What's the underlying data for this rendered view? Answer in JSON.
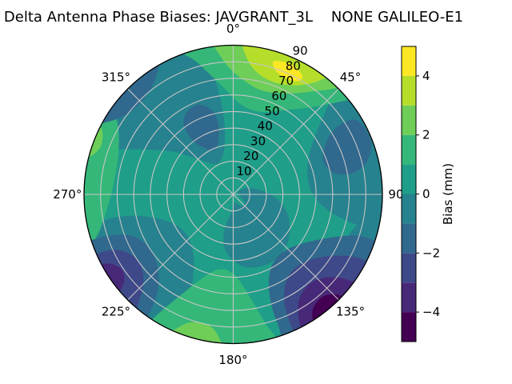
{
  "chart_data": {
    "type": "polar_contour",
    "title": "Delta Antenna Phase Biases: JAVGRANT_3L    NONE GALILEO-E1",
    "units": "mm",
    "value_range": [
      -5,
      5
    ],
    "grid_on": true,
    "base_value": 0.5,
    "base_color": "#1f9e89",
    "angular_ticks": [
      {
        "deg": 0,
        "label": "0°"
      },
      {
        "deg": 45,
        "label": "45°"
      },
      {
        "deg": 90,
        "label": "90°"
      },
      {
        "deg": 135,
        "label": "135°"
      },
      {
        "deg": 180,
        "label": "180°"
      },
      {
        "deg": 225,
        "label": "225°"
      },
      {
        "deg": 270,
        "label": "270°"
      },
      {
        "deg": 315,
        "label": "315°"
      }
    ],
    "radial_axis": {
      "max": 90,
      "grid_step": 10,
      "label_angle_deg": 25,
      "label_radial_pad": 5.5
    },
    "radial_ticks": [
      {
        "r": 10,
        "label": "10"
      },
      {
        "r": 20,
        "label": "20"
      },
      {
        "r": 30,
        "label": "30"
      },
      {
        "r": 40,
        "label": "40"
      },
      {
        "r": 50,
        "label": "50"
      },
      {
        "r": 60,
        "label": "60"
      },
      {
        "r": 70,
        "label": "70"
      },
      {
        "r": 80,
        "label": "80"
      },
      {
        "r": 90,
        "label": "90"
      }
    ],
    "colorbar": {
      "label": "Bias (mm)",
      "vmin": -5,
      "vmax": 5,
      "ticks": [
        {
          "v": 4,
          "label": "4"
        },
        {
          "v": 2,
          "label": "2"
        },
        {
          "v": 0,
          "label": "0"
        },
        {
          "v": -2,
          "label": "−2"
        },
        {
          "v": -4,
          "label": "−4"
        }
      ],
      "levels": [
        {
          "from": -5,
          "to": -4,
          "color": "#440154"
        },
        {
          "from": -4,
          "to": -3,
          "color": "#482878"
        },
        {
          "from": -3,
          "to": -2,
          "color": "#3e4989"
        },
        {
          "from": -2,
          "to": -1,
          "color": "#31688e"
        },
        {
          "from": -1,
          "to": 0,
          "color": "#26828e"
        },
        {
          "from": 0,
          "to": 1,
          "color": "#1f9e89"
        },
        {
          "from": 1,
          "to": 2,
          "color": "#35b779"
        },
        {
          "from": 2,
          "to": 3,
          "color": "#6ece58"
        },
        {
          "from": 3,
          "to": 4,
          "color": "#b5de2b"
        },
        {
          "from": 4,
          "to": 5,
          "color": "#fde725"
        }
      ]
    },
    "regions": [
      {
        "value": -0.5,
        "color": "#26828e",
        "name": "upper-left-low",
        "points": [
          [
            283,
            95
          ],
          [
            290,
            78
          ],
          [
            296,
            62
          ],
          [
            305,
            45
          ],
          [
            315,
            30
          ],
          [
            327,
            22
          ],
          [
            340,
            22
          ],
          [
            350,
            30
          ],
          [
            353,
            45
          ],
          [
            352,
            62
          ],
          [
            350,
            80
          ],
          [
            349,
            95
          ],
          [
            330,
            98
          ],
          [
            310,
            98
          ],
          [
            292,
            98
          ]
        ]
      },
      {
        "value": -0.5,
        "color": "#26828e",
        "name": "right-low",
        "points": [
          [
            44,
            92
          ],
          [
            48,
            75
          ],
          [
            55,
            60
          ],
          [
            65,
            50
          ],
          [
            78,
            46
          ],
          [
            90,
            48
          ],
          [
            99,
            57
          ],
          [
            103,
            70
          ],
          [
            104,
            84
          ],
          [
            103,
            95
          ],
          [
            85,
            98
          ],
          [
            65,
            98
          ],
          [
            50,
            96
          ]
        ]
      },
      {
        "value": -0.5,
        "color": "#26828e",
        "name": "center-low",
        "points": [
          [
            62,
            8
          ],
          [
            80,
            16
          ],
          [
            95,
            26
          ],
          [
            112,
            36
          ],
          [
            132,
            44
          ],
          [
            152,
            47
          ],
          [
            172,
            44
          ],
          [
            188,
            34
          ],
          [
            194,
            22
          ],
          [
            186,
            11
          ],
          [
            168,
            5
          ],
          [
            148,
            8
          ],
          [
            128,
            9
          ],
          [
            108,
            5
          ],
          [
            88,
            3
          ],
          [
            70,
            3
          ]
        ]
      },
      {
        "value": -0.5,
        "color": "#26828e",
        "name": "lower-left-low",
        "points": [
          [
            203,
            92
          ],
          [
            202,
            75
          ],
          [
            205,
            58
          ],
          [
            212,
            45
          ],
          [
            224,
            38
          ],
          [
            238,
            38
          ],
          [
            250,
            45
          ],
          [
            257,
            58
          ],
          [
            259,
            72
          ],
          [
            258,
            85
          ],
          [
            256,
            95
          ],
          [
            240,
            98
          ],
          [
            222,
            98
          ],
          [
            208,
            96
          ]
        ]
      },
      {
        "value": -0.5,
        "color": "#26828e",
        "name": "right-edge-tongue",
        "points": [
          [
            97,
            94
          ],
          [
            99,
            84
          ],
          [
            105,
            76
          ],
          [
            113,
            74
          ],
          [
            118,
            80
          ],
          [
            117,
            89
          ],
          [
            112,
            95
          ],
          [
            104,
            97
          ]
        ]
      },
      {
        "value": 1.5,
        "color": "#35b779",
        "name": "top-green",
        "points": [
          [
            338,
            96
          ],
          [
            344,
            84
          ],
          [
            350,
            72
          ],
          [
            357,
            62
          ],
          [
            4,
            55
          ],
          [
            13,
            52
          ],
          [
            23,
            54
          ],
          [
            32,
            60
          ],
          [
            40,
            68
          ],
          [
            46,
            78
          ],
          [
            50,
            88
          ],
          [
            52,
            96
          ],
          [
            35,
            99
          ],
          [
            15,
            100
          ],
          [
            355,
            99
          ],
          [
            345,
            98
          ]
        ]
      },
      {
        "value": 1.5,
        "color": "#35b779",
        "name": "left-edge-green",
        "points": [
          [
            249,
            97
          ],
          [
            253,
            86
          ],
          [
            260,
            79
          ],
          [
            269,
            74
          ],
          [
            280,
            72
          ],
          [
            291,
            74
          ],
          [
            300,
            80
          ],
          [
            305,
            88
          ],
          [
            307,
            96
          ],
          [
            295,
            99
          ],
          [
            280,
            100
          ],
          [
            265,
            100
          ],
          [
            255,
            99
          ]
        ]
      },
      {
        "value": 1.5,
        "color": "#35b779",
        "name": "bottom-green",
        "points": [
          [
            163,
            96
          ],
          [
            166,
            80
          ],
          [
            170,
            65
          ],
          [
            176,
            52
          ],
          [
            184,
            46
          ],
          [
            193,
            47
          ],
          [
            201,
            55
          ],
          [
            207,
            67
          ],
          [
            211,
            80
          ],
          [
            213,
            90
          ],
          [
            214,
            97
          ],
          [
            200,
            100
          ],
          [
            185,
            100
          ],
          [
            172,
            99
          ]
        ]
      },
      {
        "value": -1.5,
        "color": "#31688e",
        "name": "nw-edge-blue",
        "points": [
          [
            297,
            96
          ],
          [
            301,
            86
          ],
          [
            308,
            80
          ],
          [
            317,
            79
          ],
          [
            325,
            83
          ],
          [
            330,
            90
          ],
          [
            331,
            96
          ],
          [
            320,
            98
          ],
          [
            308,
            98
          ]
        ]
      },
      {
        "value": -1.5,
        "color": "#31688e",
        "name": "nw-inner-blue",
        "points": [
          [
            325,
            52
          ],
          [
            331,
            57
          ],
          [
            339,
            58
          ],
          [
            346,
            52
          ],
          [
            348,
            43
          ],
          [
            344,
            33
          ],
          [
            336,
            29
          ],
          [
            328,
            33
          ],
          [
            323,
            42
          ]
        ]
      },
      {
        "value": -1.5,
        "color": "#31688e",
        "name": "ne-blue",
        "points": [
          [
            59,
            87
          ],
          [
            57,
            75
          ],
          [
            61,
            64
          ],
          [
            69,
            58
          ],
          [
            77,
            61
          ],
          [
            80,
            71
          ],
          [
            77,
            82
          ],
          [
            69,
            89
          ]
        ]
      },
      {
        "value": -1.5,
        "color": "#31688e",
        "name": "se-blue",
        "points": [
          [
            110,
            95
          ],
          [
            108,
            82
          ],
          [
            112,
            68
          ],
          [
            120,
            56
          ],
          [
            131,
            48
          ],
          [
            143,
            46
          ],
          [
            153,
            50
          ],
          [
            159,
            60
          ],
          [
            161,
            72
          ],
          [
            161,
            84
          ],
          [
            160,
            95
          ],
          [
            147,
            98
          ],
          [
            133,
            99
          ],
          [
            120,
            98
          ]
        ]
      },
      {
        "value": -1.5,
        "color": "#31688e",
        "name": "sw-blue",
        "points": [
          [
            216,
            95
          ],
          [
            216,
            82
          ],
          [
            220,
            70
          ],
          [
            228,
            62
          ],
          [
            238,
            60
          ],
          [
            247,
            65
          ],
          [
            251,
            75
          ],
          [
            252,
            86
          ],
          [
            251,
            95
          ],
          [
            240,
            98
          ],
          [
            227,
            97
          ]
        ]
      },
      {
        "value": -2.5,
        "color": "#3e4989",
        "name": "se-deep",
        "points": [
          [
            118,
            95
          ],
          [
            117,
            84
          ],
          [
            121,
            72
          ],
          [
            129,
            62
          ],
          [
            139,
            58
          ],
          [
            148,
            61
          ],
          [
            154,
            70
          ],
          [
            156,
            81
          ],
          [
            156,
            92
          ],
          [
            154,
            97
          ],
          [
            143,
            99
          ],
          [
            130,
            98
          ]
        ]
      },
      {
        "value": -2.5,
        "color": "#3e4989",
        "name": "sw-deep",
        "points": [
          [
            221,
            95
          ],
          [
            222,
            84
          ],
          [
            227,
            74
          ],
          [
            235,
            70
          ],
          [
            243,
            75
          ],
          [
            246,
            84
          ],
          [
            246,
            93
          ],
          [
            244,
            97
          ],
          [
            233,
            98
          ]
        ]
      },
      {
        "value": -3.5,
        "color": "#482878",
        "name": "se-deeper",
        "points": [
          [
            127,
            96
          ],
          [
            127,
            85
          ],
          [
            132,
            75
          ],
          [
            140,
            71
          ],
          [
            148,
            75
          ],
          [
            152,
            84
          ],
          [
            153,
            93
          ],
          [
            151,
            97
          ],
          [
            139,
            99
          ]
        ]
      },
      {
        "value": -3.5,
        "color": "#482878",
        "name": "sw-deeper",
        "points": [
          [
            229,
            95
          ],
          [
            231,
            85
          ],
          [
            236,
            81
          ],
          [
            241,
            86
          ],
          [
            242,
            93
          ],
          [
            240,
            97
          ],
          [
            234,
            97
          ]
        ]
      },
      {
        "value": -4.5,
        "color": "#440154",
        "name": "se-min",
        "points": [
          [
            133,
            96
          ],
          [
            134,
            87
          ],
          [
            139,
            82
          ],
          [
            145,
            84
          ],
          [
            148,
            91
          ],
          [
            148,
            96
          ],
          [
            141,
            98
          ]
        ]
      },
      {
        "value": 2.5,
        "color": "#6ece58",
        "name": "top-green2",
        "points": [
          [
            352,
            95
          ],
          [
            355,
            83
          ],
          [
            0,
            74
          ],
          [
            7,
            68
          ],
          [
            15,
            65
          ],
          [
            24,
            67
          ],
          [
            32,
            72
          ],
          [
            38,
            79
          ],
          [
            43,
            87
          ],
          [
            45,
            95
          ],
          [
            30,
            98
          ],
          [
            12,
            99
          ],
          [
            358,
            98
          ]
        ]
      },
      {
        "value": 2.5,
        "color": "#6ece58",
        "name": "left-green2",
        "points": [
          [
            283,
            96
          ],
          [
            285,
            89
          ],
          [
            290,
            85
          ],
          [
            296,
            88
          ],
          [
            298,
            95
          ],
          [
            291,
            98
          ]
        ]
      },
      {
        "value": 2.5,
        "color": "#6ece58",
        "name": "bottom-green2",
        "points": [
          [
            184,
            97
          ],
          [
            186,
            86
          ],
          [
            191,
            80
          ],
          [
            198,
            81
          ],
          [
            203,
            88
          ],
          [
            205,
            96
          ],
          [
            196,
            99
          ]
        ]
      },
      {
        "value": 3.5,
        "color": "#b5de2b",
        "name": "top-yellowgreen",
        "points": [
          [
            4,
            93
          ],
          [
            6,
            82
          ],
          [
            11,
            75
          ],
          [
            19,
            72
          ],
          [
            27,
            74
          ],
          [
            33,
            79
          ],
          [
            37,
            86
          ],
          [
            38,
            93
          ],
          [
            27,
            97
          ],
          [
            14,
            97
          ]
        ]
      },
      {
        "value": 4.5,
        "color": "#fde725",
        "name": "top-max-streak",
        "points": [
          [
            17,
            84
          ],
          [
            19,
            79
          ],
          [
            25,
            77
          ],
          [
            30,
            79
          ],
          [
            30,
            83
          ],
          [
            24,
            86
          ]
        ]
      }
    ]
  }
}
